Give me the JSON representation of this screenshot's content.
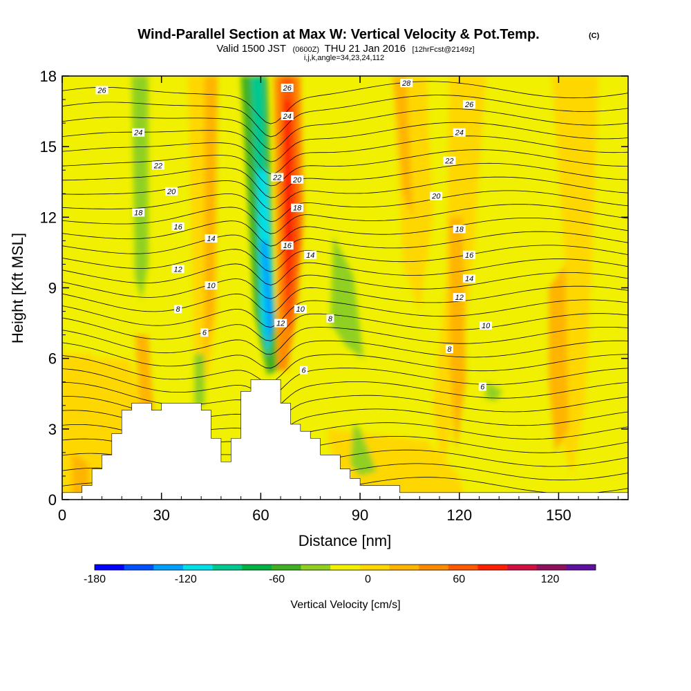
{
  "chart_data": {
    "type": "heatmap",
    "title": "Wind-Parallel Section at Max W: Vertical Velocity & Pot.Temp.",
    "title_mark": "(C)",
    "subtitle_parts": [
      "Valid 1500 JST",
      "(0600Z)",
      "THU 21 Jan 2016",
      "[12hrFcst@2149z]"
    ],
    "subsubtitle": "i,j,k,angle=34,23,24,112",
    "xlabel": "Distance [nm]",
    "ylabel": "Height [Kft MSL]",
    "xlim": [
      0,
      171
    ],
    "ylim": [
      0,
      18
    ],
    "x_ticks": [
      0,
      30,
      60,
      90,
      120,
      150
    ],
    "y_ticks": [
      0,
      3,
      6,
      9,
      12,
      15,
      18
    ],
    "colorbar": {
      "label": "Vertical Velocity [cm/s]",
      "min": -180,
      "max": 150,
      "step": 15,
      "tick_values": [
        -180,
        -120,
        -60,
        0,
        60,
        120
      ],
      "colors": [
        "#0000ff",
        "#0050ff",
        "#00a0ff",
        "#00e0e8",
        "#00c890",
        "#00b040",
        "#40b020",
        "#90d020",
        "#f0f000",
        "#ffd700",
        "#ffb400",
        "#ff8c00",
        "#ff5a00",
        "#ff2000",
        "#d01040",
        "#901060",
        "#6010a0",
        "#500090",
        "#400080",
        "#300070",
        "#200060",
        "#100050"
      ]
    },
    "contour_labels": [
      {
        "x": 12,
        "y": 17.4,
        "v": "26"
      },
      {
        "x": 23,
        "y": 15.6,
        "v": "24"
      },
      {
        "x": 29,
        "y": 14.2,
        "v": "22"
      },
      {
        "x": 33,
        "y": 13.1,
        "v": "20"
      },
      {
        "x": 23,
        "y": 12.2,
        "v": "18"
      },
      {
        "x": 35,
        "y": 11.6,
        "v": "16"
      },
      {
        "x": 45,
        "y": 11.1,
        "v": "14"
      },
      {
        "x": 35,
        "y": 9.8,
        "v": "12"
      },
      {
        "x": 45,
        "y": 9.1,
        "v": "10"
      },
      {
        "x": 35,
        "y": 8.1,
        "v": "8"
      },
      {
        "x": 43,
        "y": 7.1,
        "v": "6"
      },
      {
        "x": 68,
        "y": 17.5,
        "v": "26"
      },
      {
        "x": 68,
        "y": 16.3,
        "v": "24"
      },
      {
        "x": 65,
        "y": 13.7,
        "v": "22"
      },
      {
        "x": 71,
        "y": 13.6,
        "v": "20"
      },
      {
        "x": 71,
        "y": 12.4,
        "v": "18"
      },
      {
        "x": 68,
        "y": 10.8,
        "v": "16"
      },
      {
        "x": 75,
        "y": 10.4,
        "v": "14"
      },
      {
        "x": 66,
        "y": 7.5,
        "v": "12"
      },
      {
        "x": 72,
        "y": 8.1,
        "v": "10"
      },
      {
        "x": 81,
        "y": 7.7,
        "v": "8"
      },
      {
        "x": 73,
        "y": 5.5,
        "v": "6"
      },
      {
        "x": 104,
        "y": 17.7,
        "v": "28"
      },
      {
        "x": 123,
        "y": 16.8,
        "v": "26"
      },
      {
        "x": 120,
        "y": 15.6,
        "v": "24"
      },
      {
        "x": 117,
        "y": 14.4,
        "v": "22"
      },
      {
        "x": 113,
        "y": 12.9,
        "v": "20"
      },
      {
        "x": 120,
        "y": 11.5,
        "v": "18"
      },
      {
        "x": 123,
        "y": 10.4,
        "v": "16"
      },
      {
        "x": 123,
        "y": 9.4,
        "v": "14"
      },
      {
        "x": 120,
        "y": 8.6,
        "v": "12"
      },
      {
        "x": 128,
        "y": 7.4,
        "v": "10"
      },
      {
        "x": 117,
        "y": 6.4,
        "v": "8"
      },
      {
        "x": 127,
        "y": 4.8,
        "v": "6"
      }
    ],
    "terrain": [
      [
        0,
        0.3
      ],
      [
        6,
        0.3
      ],
      [
        6,
        0.6
      ],
      [
        9,
        0.6
      ],
      [
        9,
        1.3
      ],
      [
        12,
        1.3
      ],
      [
        12,
        1.9
      ],
      [
        15,
        1.9
      ],
      [
        15,
        2.8
      ],
      [
        18,
        2.8
      ],
      [
        18,
        3.8
      ],
      [
        21,
        3.8
      ],
      [
        21,
        4.1
      ],
      [
        27,
        4.1
      ],
      [
        27,
        3.8
      ],
      [
        30,
        3.8
      ],
      [
        30,
        4.1
      ],
      [
        42,
        4.1
      ],
      [
        42,
        3.8
      ],
      [
        45,
        3.8
      ],
      [
        45,
        2.6
      ],
      [
        48,
        2.6
      ],
      [
        48,
        1.6
      ],
      [
        51,
        1.6
      ],
      [
        51,
        2.6
      ],
      [
        54,
        2.6
      ],
      [
        54,
        4.6
      ],
      [
        57,
        4.6
      ],
      [
        57,
        5.1
      ],
      [
        66,
        5.1
      ],
      [
        66,
        4.1
      ],
      [
        69,
        4.1
      ],
      [
        69,
        3.2
      ],
      [
        72,
        3.2
      ],
      [
        72,
        2.9
      ],
      [
        75,
        2.9
      ],
      [
        75,
        2.6
      ],
      [
        78,
        2.6
      ],
      [
        78,
        1.9
      ],
      [
        84,
        1.9
      ],
      [
        84,
        1.3
      ],
      [
        87,
        1.3
      ],
      [
        87,
        0.9
      ],
      [
        90,
        0.9
      ],
      [
        90,
        0.6
      ],
      [
        102,
        0.6
      ],
      [
        102,
        0.3
      ],
      [
        171,
        0.3
      ]
    ]
  }
}
